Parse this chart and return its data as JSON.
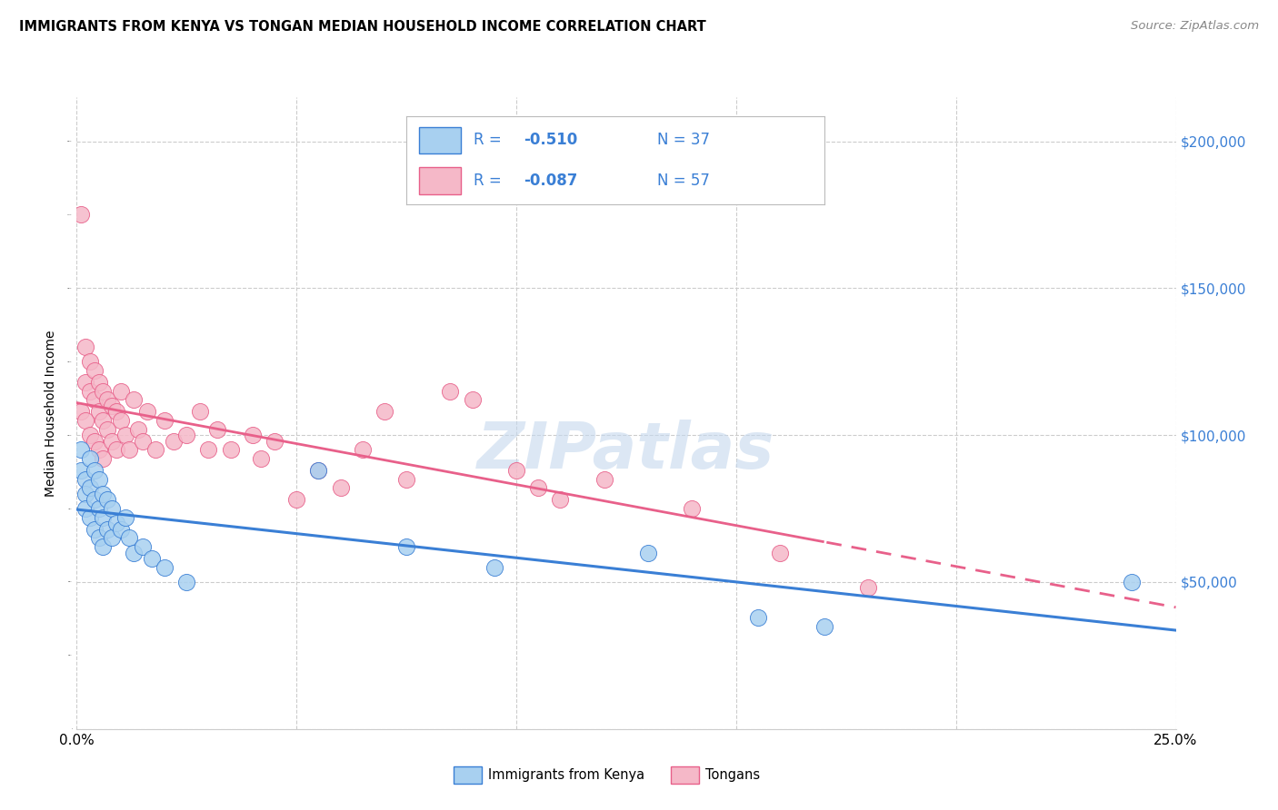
{
  "title": "IMMIGRANTS FROM KENYA VS TONGAN MEDIAN HOUSEHOLD INCOME CORRELATION CHART",
  "source": "Source: ZipAtlas.com",
  "ylabel": "Median Household Income",
  "kenya_label": "Immigrants from Kenya",
  "tonga_label": "Tongans",
  "kenya_R": "-0.510",
  "kenya_N": "37",
  "tonga_R": "-0.087",
  "tonga_N": "57",
  "kenya_color": "#a8d0f0",
  "kenya_line_color": "#3a7fd5",
  "tonga_color": "#f5b8c8",
  "tonga_line_color": "#e8608a",
  "legend_text_color": "#3a7fd5",
  "right_label_color": "#3a7fd5",
  "watermark_color": "#c5d8ee",
  "xmin": 0.0,
  "xmax": 0.25,
  "ymin": 0,
  "ymax": 215000,
  "yticks": [
    0,
    50000,
    100000,
    150000,
    200000
  ],
  "ytick_labels": [
    "",
    "$50,000",
    "$100,000",
    "$150,000",
    "$200,000"
  ],
  "kenya_scatter_x": [
    0.001,
    0.001,
    0.002,
    0.002,
    0.002,
    0.003,
    0.003,
    0.003,
    0.004,
    0.004,
    0.004,
    0.005,
    0.005,
    0.005,
    0.006,
    0.006,
    0.006,
    0.007,
    0.007,
    0.008,
    0.008,
    0.009,
    0.01,
    0.011,
    0.012,
    0.013,
    0.015,
    0.017,
    0.02,
    0.025,
    0.055,
    0.075,
    0.095,
    0.13,
    0.155,
    0.17,
    0.24
  ],
  "kenya_scatter_y": [
    95000,
    88000,
    85000,
    80000,
    75000,
    92000,
    82000,
    72000,
    88000,
    78000,
    68000,
    85000,
    75000,
    65000,
    80000,
    72000,
    62000,
    78000,
    68000,
    75000,
    65000,
    70000,
    68000,
    72000,
    65000,
    60000,
    62000,
    58000,
    55000,
    50000,
    88000,
    62000,
    55000,
    60000,
    38000,
    35000,
    50000
  ],
  "tonga_scatter_x": [
    0.001,
    0.001,
    0.002,
    0.002,
    0.002,
    0.003,
    0.003,
    0.003,
    0.004,
    0.004,
    0.004,
    0.005,
    0.005,
    0.005,
    0.006,
    0.006,
    0.006,
    0.007,
    0.007,
    0.008,
    0.008,
    0.009,
    0.009,
    0.01,
    0.01,
    0.011,
    0.012,
    0.013,
    0.014,
    0.015,
    0.016,
    0.018,
    0.02,
    0.022,
    0.025,
    0.028,
    0.03,
    0.032,
    0.035,
    0.04,
    0.042,
    0.045,
    0.05,
    0.055,
    0.06,
    0.065,
    0.07,
    0.075,
    0.085,
    0.09,
    0.1,
    0.105,
    0.11,
    0.12,
    0.14,
    0.16,
    0.18
  ],
  "tonga_scatter_y": [
    175000,
    108000,
    130000,
    118000,
    105000,
    125000,
    115000,
    100000,
    122000,
    112000,
    98000,
    118000,
    108000,
    95000,
    115000,
    105000,
    92000,
    112000,
    102000,
    110000,
    98000,
    108000,
    95000,
    115000,
    105000,
    100000,
    95000,
    112000,
    102000,
    98000,
    108000,
    95000,
    105000,
    98000,
    100000,
    108000,
    95000,
    102000,
    95000,
    100000,
    92000,
    98000,
    78000,
    88000,
    82000,
    95000,
    108000,
    85000,
    115000,
    112000,
    88000,
    82000,
    78000,
    85000,
    75000,
    60000,
    48000
  ]
}
